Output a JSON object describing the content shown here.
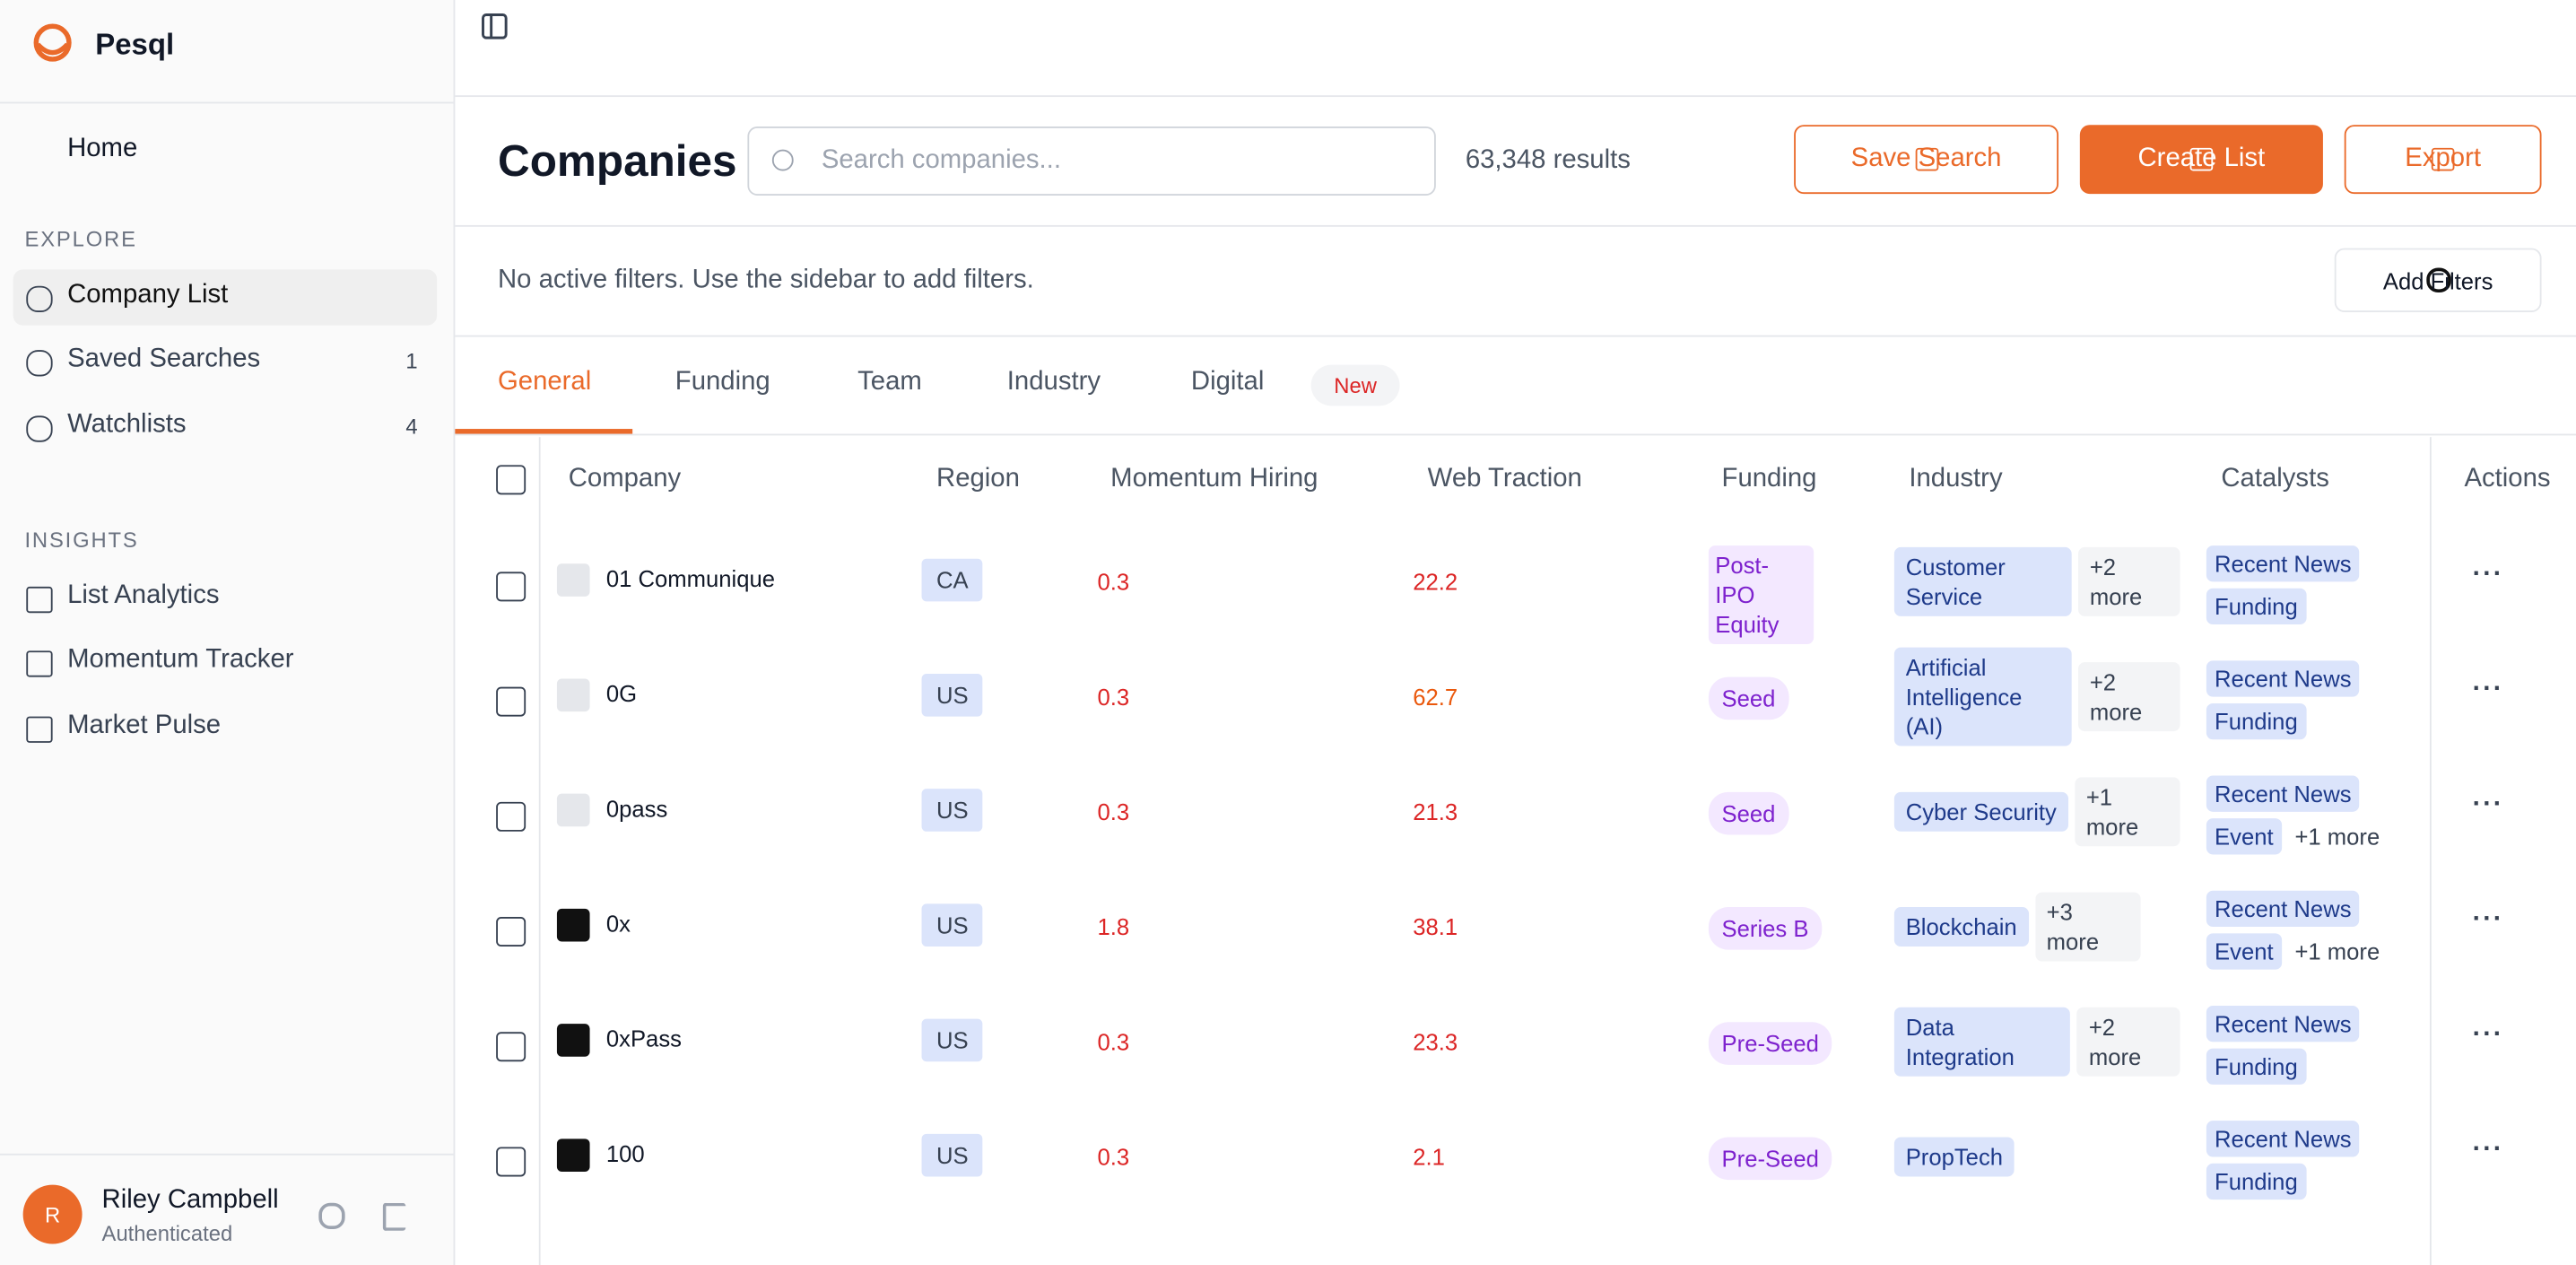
{
  "sidebar": {
    "brand": "Pesql",
    "home": "Home",
    "sections": [
      {
        "title": "EXPLORE",
        "items": [
          {
            "label": "Company List"
          },
          {
            "label": "Saved Searches",
            "count": "1"
          },
          {
            "label": "Watchlists",
            "count": "4"
          }
        ]
      },
      {
        "title": "INSIGHTS",
        "items": [
          {
            "label": "List Analytics"
          },
          {
            "label": "Momentum Tracker"
          },
          {
            "label": "Market Pulse"
          }
        ]
      }
    ],
    "user": {
      "initial": "R",
      "name": "Riley Campbell",
      "status": "Authenticated"
    }
  },
  "header": {
    "title": "Companies",
    "search_placeholder": "Search companies...",
    "results": "63,348 results",
    "buttons": [
      "Save Search",
      "Create List",
      "Export"
    ]
  },
  "filters": {
    "text": "No active filters. Use the sidebar to add filters.",
    "button": "Add Filters"
  },
  "tabs": {
    "items": [
      "General",
      "Funding",
      "Team",
      "Industry",
      "Digital"
    ],
    "badge": "New"
  },
  "table": {
    "columns": [
      "Company",
      "Region",
      "Momentum Hiring",
      "Web Traction",
      "Funding",
      "Industry",
      "Catalysts",
      "Actions"
    ],
    "rows": [
      {
        "company": "01 Communique",
        "region": "CA",
        "hiring": 0.3,
        "traction": 22.2,
        "funding": "Post-IPO Equity",
        "industry": [
          "Customer Service"
        ],
        "industry_more": "+2 more",
        "catalysts": [
          "Recent News",
          "Funding"
        ]
      },
      {
        "company": "0G",
        "region": "US",
        "hiring": 0.3,
        "traction": 62.7,
        "funding": "Seed",
        "industry": [
          "Artificial Intelligence (AI)"
        ],
        "industry_more": "+2 more",
        "catalysts": [
          "Recent News",
          "Funding"
        ]
      },
      {
        "company": "0pass",
        "region": "US",
        "hiring": 0.3,
        "traction": 21.3,
        "funding": "Seed",
        "industry": [
          "Cyber Security"
        ],
        "industry_more": "+1 more",
        "catalysts": [
          "Recent News",
          "Event"
        ],
        "catalysts_more": "+1 more"
      },
      {
        "company": "0x",
        "region": "US",
        "hiring": 1.8,
        "traction": 38.1,
        "funding": "Series B",
        "industry": [
          "Blockchain"
        ],
        "industry_more": "+3 more",
        "catalysts": [
          "Recent News",
          "Event"
        ],
        "catalysts_more": "+1 more"
      },
      {
        "company": "0xPass",
        "region": "US",
        "hiring": 0.3,
        "traction": 23.3,
        "funding": "Pre-Seed",
        "industry": [
          "Data Integration"
        ],
        "industry_more": "+2 more",
        "catalysts": [
          "Recent News",
          "Funding"
        ]
      },
      {
        "company": "100",
        "region": "US",
        "hiring": 0.3,
        "traction": 2.1,
        "funding": "Pre-Seed",
        "industry": [
          "PropTech"
        ],
        "catalysts": [
          "Recent News",
          "Funding"
        ]
      }
    ]
  }
}
